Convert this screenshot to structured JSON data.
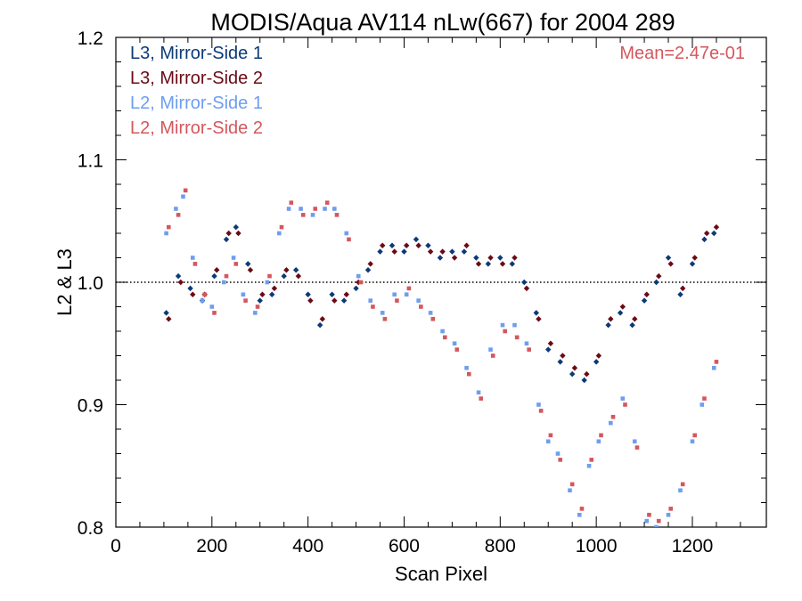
{
  "chart_data": {
    "type": "scatter",
    "title": "MODIS/Aqua AV114 nLw(667) for 2004 289",
    "xlabel": "Scan Pixel",
    "ylabel": "L2 & L3",
    "xlim": [
      0,
      1354
    ],
    "ylim": [
      0.8,
      1.2
    ],
    "xticks": [
      0,
      200,
      400,
      600,
      800,
      1000,
      1200
    ],
    "xtick_labels": [
      "0",
      "200",
      "400",
      "600",
      "800",
      "1000",
      "1200"
    ],
    "yticks": [
      0.8,
      0.9,
      1.0,
      1.1,
      1.2
    ],
    "ytick_labels": [
      "0.8",
      "0.9",
      "1.0",
      "1.1",
      "1.2"
    ],
    "reference_line": {
      "y": 1.0,
      "style": "dotted"
    },
    "annotation": {
      "text": "Mean=2.47e-01",
      "color": "#d4575d",
      "placement": "top-right"
    },
    "legend_placement": "top-left",
    "series": [
      {
        "name": "L3, Mirror-Side 1",
        "color": "#0b3a78",
        "marker": "diamond",
        "x": [
          105,
          130,
          155,
          180,
          205,
          230,
          250,
          275,
          300,
          325,
          350,
          375,
          400,
          425,
          450,
          475,
          500,
          525,
          550,
          575,
          600,
          625,
          650,
          675,
          700,
          725,
          750,
          775,
          800,
          825,
          850,
          875,
          900,
          925,
          950,
          975,
          1000,
          1025,
          1050,
          1075,
          1100,
          1125,
          1150,
          1175,
          1200,
          1225,
          1245
        ],
        "y": [
          0.975,
          1.005,
          0.995,
          0.985,
          1.005,
          1.035,
          1.045,
          1.015,
          0.985,
          0.99,
          1.005,
          1.01,
          0.99,
          0.965,
          0.99,
          0.985,
          0.995,
          1.01,
          1.025,
          1.03,
          1.025,
          1.035,
          1.03,
          1.02,
          1.025,
          1.025,
          1.02,
          1.015,
          1.02,
          1.015,
          1.0,
          0.975,
          0.945,
          0.935,
          0.925,
          0.92,
          0.935,
          0.965,
          0.975,
          0.965,
          0.985,
          1.0,
          1.02,
          0.99,
          1.015,
          1.035,
          1.04
        ]
      },
      {
        "name": "L3, Mirror-Side 2",
        "color": "#6b0a16",
        "marker": "diamond",
        "x": [
          110,
          135,
          160,
          185,
          210,
          235,
          255,
          280,
          305,
          330,
          355,
          380,
          405,
          430,
          455,
          480,
          505,
          530,
          555,
          580,
          605,
          630,
          655,
          680,
          705,
          730,
          755,
          780,
          805,
          830,
          855,
          880,
          905,
          930,
          955,
          980,
          1005,
          1030,
          1055,
          1080,
          1105,
          1130,
          1155,
          1180,
          1205,
          1230,
          1250
        ],
        "y": [
          0.97,
          1.0,
          0.99,
          0.99,
          1.01,
          1.04,
          1.04,
          1.01,
          0.99,
          0.995,
          1.01,
          1.005,
          0.985,
          0.97,
          0.985,
          0.99,
          1.0,
          1.015,
          1.03,
          1.025,
          1.03,
          1.03,
          1.025,
          1.025,
          1.02,
          1.03,
          1.015,
          1.02,
          1.015,
          1.02,
          0.995,
          0.97,
          0.95,
          0.94,
          0.93,
          0.925,
          0.94,
          0.97,
          0.98,
          0.97,
          0.99,
          1.005,
          1.015,
          0.995,
          1.02,
          1.04,
          1.045
        ]
      },
      {
        "name": "L2, Mirror-Side 1",
        "color": "#6e9ef0",
        "marker": "square",
        "x": [
          105,
          125,
          140,
          160,
          180,
          200,
          225,
          245,
          265,
          290,
          315,
          340,
          360,
          385,
          410,
          435,
          455,
          480,
          505,
          530,
          555,
          580,
          605,
          630,
          655,
          680,
          705,
          730,
          755,
          780,
          805,
          830,
          855,
          880,
          900,
          920,
          945,
          965,
          985,
          1005,
          1030,
          1055,
          1080,
          1105,
          1125,
          1150,
          1175,
          1200,
          1220,
          1245
        ],
        "y": [
          1.04,
          1.06,
          1.07,
          1.02,
          0.985,
          0.98,
          1.0,
          1.02,
          0.99,
          0.975,
          1.0,
          1.04,
          1.06,
          1.06,
          1.055,
          1.06,
          1.06,
          1.04,
          1.005,
          0.985,
          0.975,
          0.99,
          0.99,
          0.985,
          0.975,
          0.96,
          0.95,
          0.93,
          0.91,
          0.945,
          0.965,
          0.965,
          0.95,
          0.9,
          0.87,
          0.86,
          0.83,
          0.81,
          0.85,
          0.87,
          0.885,
          0.905,
          0.87,
          0.805,
          0.8,
          0.81,
          0.83,
          0.87,
          0.9,
          0.93
        ]
      },
      {
        "name": "L2, Mirror-Side 2",
        "color": "#d4575d",
        "marker": "square",
        "x": [
          110,
          130,
          145,
          165,
          185,
          205,
          230,
          250,
          270,
          295,
          320,
          345,
          365,
          390,
          415,
          440,
          460,
          485,
          510,
          535,
          560,
          585,
          610,
          635,
          660,
          685,
          710,
          735,
          760,
          785,
          810,
          835,
          860,
          885,
          905,
          925,
          950,
          970,
          990,
          1010,
          1035,
          1060,
          1085,
          1110,
          1130,
          1155,
          1180,
          1205,
          1225,
          1250
        ],
        "y": [
          1.045,
          1.055,
          1.075,
          1.015,
          0.99,
          0.975,
          1.005,
          1.015,
          0.985,
          0.98,
          1.005,
          1.045,
          1.065,
          1.055,
          1.06,
          1.065,
          1.055,
          1.035,
          1.0,
          0.98,
          0.97,
          0.985,
          0.995,
          0.98,
          0.97,
          0.955,
          0.945,
          0.925,
          0.905,
          0.94,
          0.96,
          0.955,
          0.945,
          0.895,
          0.875,
          0.855,
          0.835,
          0.815,
          0.855,
          0.875,
          0.89,
          0.9,
          0.865,
          0.81,
          0.805,
          0.815,
          0.835,
          0.875,
          0.905,
          0.935
        ]
      }
    ]
  }
}
